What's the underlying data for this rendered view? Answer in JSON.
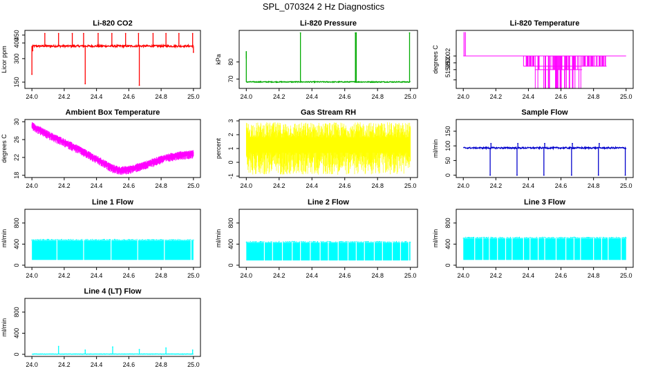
{
  "page": {
    "title": "SPL_070324  2 Hz Diagnostics"
  },
  "chart_data": [
    {
      "id": "co2",
      "type": "line",
      "title": "Li-820 CO2",
      "xlabel": "",
      "ylabel": "Licor ppm",
      "color": "#ff0000",
      "style": "spiky-line",
      "xlim": [
        24.0,
        25.0
      ],
      "ylim": [
        110,
        480
      ],
      "x_ticks": [
        "24.0",
        "24.2",
        "24.4",
        "24.6",
        "24.8",
        "25.0"
      ],
      "y_ticks": [
        {
          "value": 150,
          "label": "150"
        },
        {
          "value": 300,
          "label": "300"
        },
        {
          "value": 400,
          "label": "400"
        },
        {
          "value": 450,
          "label": "450"
        }
      ],
      "series": [
        {
          "name": "CO2",
          "baseline": 380,
          "noise": 6,
          "start": 24.0,
          "end": 25.0,
          "spikes": [
            [
              24.0,
              200
            ],
            [
              24.005,
              350
            ],
            [
              24.08,
              460
            ],
            [
              24.165,
              460
            ],
            [
              24.25,
              460
            ],
            [
              24.32,
              460
            ],
            [
              24.33,
              140
            ],
            [
              24.41,
              460
            ],
            [
              24.495,
              460
            ],
            [
              24.58,
              460
            ],
            [
              24.66,
              460
            ],
            [
              24.665,
              130
            ],
            [
              24.75,
              460
            ],
            [
              24.83,
              460
            ],
            [
              24.91,
              460
            ],
            [
              24.995,
              460
            ],
            [
              25.0,
              340
            ]
          ]
        }
      ]
    },
    {
      "id": "pressure",
      "type": "line",
      "title": "Li-820 Pressure",
      "xlabel": "",
      "ylabel": "kPa",
      "color": "#00aa00",
      "style": "spiky-line",
      "xlim": [
        24.0,
        25.0
      ],
      "ylim": [
        64.5,
        98.5
      ],
      "x_ticks": [
        "24.0",
        "24.2",
        "24.4",
        "24.6",
        "24.8",
        "25.0"
      ],
      "y_ticks": [
        {
          "value": 70,
          "label": "70"
        },
        {
          "value": 80,
          "label": "80"
        }
      ],
      "series": [
        {
          "name": "Pressure",
          "baseline": 68.3,
          "noise": 0.25,
          "start": 24.0,
          "end": 25.0,
          "spikes": [
            [
              24.0,
              86
            ],
            [
              24.33,
              97
            ],
            [
              24.665,
              97
            ],
            [
              24.67,
              97
            ],
            [
              24.995,
              97
            ]
          ],
          "pre_segment": {
            "x": 24.0,
            "y0": 82,
            "y1": 86
          }
        }
      ]
    },
    {
      "id": "temperature",
      "type": "line",
      "title": "Li-820 Temperature",
      "xlabel": "",
      "ylabel": "degrees C",
      "color": "#ff00ff",
      "style": "temp-steps",
      "xlim": [
        24.0,
        25.0
      ],
      "ylim": [
        51.925,
        52.095
      ],
      "x_ticks": [
        "24.0",
        "24.2",
        "24.4",
        "24.6",
        "24.8",
        "25.0"
      ],
      "y_ticks": [
        {
          "value": 51.95,
          "label": ""
        },
        {
          "value": 51.98,
          "label": "51.98"
        },
        {
          "value": 52.0,
          "label": "52.00"
        },
        {
          "value": 52.02,
          "label": "52.02"
        }
      ],
      "series": [
        {
          "name": "Temperature",
          "baseline": 52.02,
          "start": 24.0,
          "end": 25.0,
          "start_spike": [
            24.005,
            52.09
          ],
          "dip_region": [
            24.37,
            24.88
          ],
          "deep_region": [
            24.44,
            24.73
          ],
          "levels": [
            51.99,
            51.98
          ]
        }
      ]
    },
    {
      "id": "ambient",
      "type": "line",
      "title": "Ambient Box Temperature",
      "xlabel": "",
      "ylabel": "degrees C",
      "color": "#ff00ff",
      "style": "band",
      "xlim": [
        24.0,
        25.0
      ],
      "ylim": [
        17.5,
        30.5
      ],
      "x_ticks": [
        "24.0",
        "24.2",
        "24.4",
        "24.6",
        "24.8",
        "25.0"
      ],
      "y_ticks": [
        {
          "value": 18,
          "label": "18"
        },
        {
          "value": 22,
          "label": "22"
        },
        {
          "value": 26,
          "label": "26"
        },
        {
          "value": 30,
          "label": "30"
        }
      ],
      "series": [
        {
          "name": "Ambient",
          "x": [
            24.0,
            24.1,
            24.2,
            24.3,
            24.4,
            24.5,
            24.55,
            24.6,
            24.7,
            24.8,
            24.9,
            25.0
          ],
          "y": [
            29.3,
            27.3,
            25.6,
            23.8,
            21.8,
            19.8,
            19.3,
            19.5,
            20.5,
            21.8,
            22.7,
            23.0
          ],
          "spread": 1.3
        }
      ]
    },
    {
      "id": "rh",
      "type": "line",
      "title": "Gas Stream RH",
      "xlabel": "",
      "ylabel": "percent",
      "color": "#ffff00",
      "style": "noise-band",
      "xlim": [
        24.0,
        25.0
      ],
      "ylim": [
        -1.1,
        3.1
      ],
      "x_ticks": [
        "24.0",
        "24.2",
        "24.4",
        "24.6",
        "24.8",
        "25.0"
      ],
      "y_ticks": [
        {
          "value": -1,
          "label": "-1"
        },
        {
          "value": 0,
          "label": "0"
        },
        {
          "value": 1,
          "label": "1"
        },
        {
          "value": 2,
          "label": "2"
        },
        {
          "value": 3,
          "label": "3"
        }
      ],
      "series": [
        {
          "name": "RH",
          "low": 0.7,
          "high": 1.8,
          "min": -0.9,
          "max": 2.9,
          "start": 24.0,
          "end": 25.0
        }
      ]
    },
    {
      "id": "sample",
      "type": "line",
      "title": "Sample Flow",
      "xlabel": "",
      "ylabel": "ml/min",
      "color": "#0000cc",
      "style": "spiky-line",
      "xlim": [
        24.0,
        25.0
      ],
      "ylim": [
        -8,
        190
      ],
      "x_ticks": [
        "24.0",
        "24.2",
        "24.4",
        "24.6",
        "24.8",
        "25.0"
      ],
      "y_ticks": [
        {
          "value": 0,
          "label": "0"
        },
        {
          "value": 50,
          "label": "50"
        },
        {
          "value": 100,
          "label": "100"
        },
        {
          "value": 150,
          "label": "150"
        }
      ],
      "series": [
        {
          "name": "Sample",
          "baseline": 93,
          "noise": 2.5,
          "start": 24.0,
          "end": 25.0,
          "spikes": [
            [
              24.165,
              0
            ],
            [
              24.17,
              108
            ],
            [
              24.33,
              0
            ],
            [
              24.335,
              108
            ],
            [
              24.495,
              0
            ],
            [
              24.5,
              108
            ],
            [
              24.665,
              0
            ],
            [
              24.67,
              108
            ],
            [
              24.83,
              0
            ],
            [
              24.835,
              108
            ],
            [
              24.995,
              0
            ]
          ]
        }
      ]
    },
    {
      "id": "line1",
      "type": "line",
      "title": "Line 1 Flow",
      "xlabel": "",
      "ylabel": "ml/min",
      "color": "#00ffff",
      "style": "flow-band",
      "xlim": [
        24.0,
        25.0
      ],
      "ylim": [
        -40,
        1060
      ],
      "x_ticks": [
        "24.0",
        "24.2",
        "24.4",
        "24.6",
        "24.8",
        "25.0"
      ],
      "y_ticks": [
        {
          "value": 0,
          "label": "0"
        },
        {
          "value": 400,
          "label": "400"
        },
        {
          "value": 800,
          "label": "800"
        }
      ],
      "series": [
        {
          "name": "Line 1",
          "low": 100,
          "high": 460,
          "start": 24.0,
          "end": 25.0,
          "gaps": [
            24.155,
            24.32,
            24.49,
            24.655,
            24.82,
            24.985
          ]
        }
      ]
    },
    {
      "id": "line2",
      "type": "line",
      "title": "Line 2 Flow",
      "xlabel": "",
      "ylabel": "ml/min",
      "color": "#00ffff",
      "style": "flow-band",
      "xlim": [
        24.0,
        25.0
      ],
      "ylim": [
        -40,
        1060
      ],
      "x_ticks": [
        "24.0",
        "24.2",
        "24.4",
        "24.6",
        "24.8",
        "25.0"
      ],
      "y_ticks": [
        {
          "value": 0,
          "label": "0"
        },
        {
          "value": 400,
          "label": "400"
        },
        {
          "value": 800,
          "label": "800"
        }
      ],
      "series": [
        {
          "name": "Line 2",
          "low": 90,
          "high": 420,
          "start": 24.0,
          "end": 25.0,
          "gaps": [
            24.11,
            24.16,
            24.22,
            24.28,
            24.33,
            24.39,
            24.45,
            24.5,
            24.56,
            24.62,
            24.67,
            24.72,
            24.78,
            24.83,
            24.89,
            24.94,
            24.99
          ]
        }
      ]
    },
    {
      "id": "line3",
      "type": "line",
      "title": "Line 3 Flow",
      "xlabel": "",
      "ylabel": "ml/min",
      "color": "#00ffff",
      "style": "flow-band",
      "xlim": [
        24.0,
        25.0
      ],
      "ylim": [
        -40,
        1060
      ],
      "x_ticks": [
        "24.0",
        "24.2",
        "24.4",
        "24.6",
        "24.8",
        "25.0"
      ],
      "y_ticks": [
        {
          "value": 0,
          "label": "0"
        },
        {
          "value": 400,
          "label": "400"
        },
        {
          "value": 800,
          "label": "800"
        }
      ],
      "series": [
        {
          "name": "Line 3",
          "low": 100,
          "high": 500,
          "start": 24.0,
          "end": 25.0,
          "gaps": [
            24.07,
            24.12,
            24.16,
            24.21,
            24.26,
            24.3,
            24.37,
            24.41,
            24.46,
            24.5,
            24.57,
            24.63,
            24.68,
            24.72,
            24.8,
            24.85,
            24.89,
            24.97
          ]
        }
      ]
    },
    {
      "id": "line4",
      "type": "line",
      "title": "Line 4 (LT) Flow",
      "xlabel": "",
      "ylabel": "ml/min",
      "color": "#00ffff",
      "style": "spiky-line",
      "xlim": [
        24.0,
        25.0
      ],
      "ylim": [
        -40,
        1060
      ],
      "x_ticks": [
        "24.0",
        "24.2",
        "24.4",
        "24.6",
        "24.8",
        "25.0"
      ],
      "y_ticks": [
        {
          "value": 0,
          "label": "0"
        },
        {
          "value": 400,
          "label": "400"
        },
        {
          "value": 800,
          "label": "800"
        }
      ],
      "series": [
        {
          "name": "Line 4 (LT)",
          "baseline": 5,
          "noise": 3,
          "start": 24.0,
          "end": 25.0,
          "spikes": [
            [
              24.165,
              150
            ],
            [
              24.33,
              80
            ],
            [
              24.5,
              140
            ],
            [
              24.665,
              90
            ],
            [
              24.83,
              120
            ],
            [
              24.995,
              80
            ]
          ]
        }
      ]
    }
  ]
}
